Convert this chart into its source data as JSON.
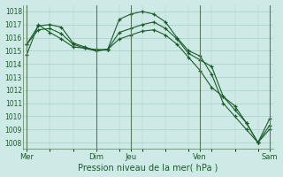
{
  "background_color": "#ceeae6",
  "grid_color": "#aaccc8",
  "line_color": "#1a5c28",
  "xlabel": "Pression niveau de la mer( hPa )",
  "ylim": [
    1007.5,
    1018.5
  ],
  "yticks": [
    1008,
    1009,
    1010,
    1011,
    1012,
    1013,
    1014,
    1015,
    1016,
    1017,
    1018
  ],
  "xtick_labels": [
    "Mer",
    "Dim",
    "Jeu",
    "Ven",
    "Sam"
  ],
  "xtick_positions": [
    0,
    6,
    9,
    15,
    21
  ],
  "vlines": [
    0,
    6,
    9,
    15,
    21
  ],
  "series": [
    [
      1014.7,
      1017.0,
      1016.4,
      1015.9,
      1015.3,
      1015.2,
      1015.0,
      1015.1,
      1017.4,
      1017.8,
      1018.0,
      1017.8,
      1017.2,
      1016.0,
      1015.0,
      1014.6,
      1013.2,
      1011.0,
      1010.0,
      1009.0,
      1008.0,
      1009.3
    ],
    [
      1015.5,
      1016.6,
      1016.7,
      1016.3,
      1015.5,
      1015.2,
      1015.1,
      1015.1,
      1015.9,
      1016.2,
      1016.5,
      1016.6,
      1016.2,
      1015.5,
      1014.5,
      1013.5,
      1012.2,
      1011.5,
      1010.8,
      1009.5,
      1008.0,
      1009.0
    ],
    [
      1015.5,
      1016.9,
      1017.0,
      1016.8,
      1015.6,
      1015.3,
      1015.0,
      1015.1,
      1016.4,
      1016.7,
      1017.0,
      1017.2,
      1016.7,
      1015.9,
      1014.8,
      1014.3,
      1013.8,
      1011.5,
      1010.5,
      1009.5,
      1008.0,
      1009.8
    ]
  ]
}
